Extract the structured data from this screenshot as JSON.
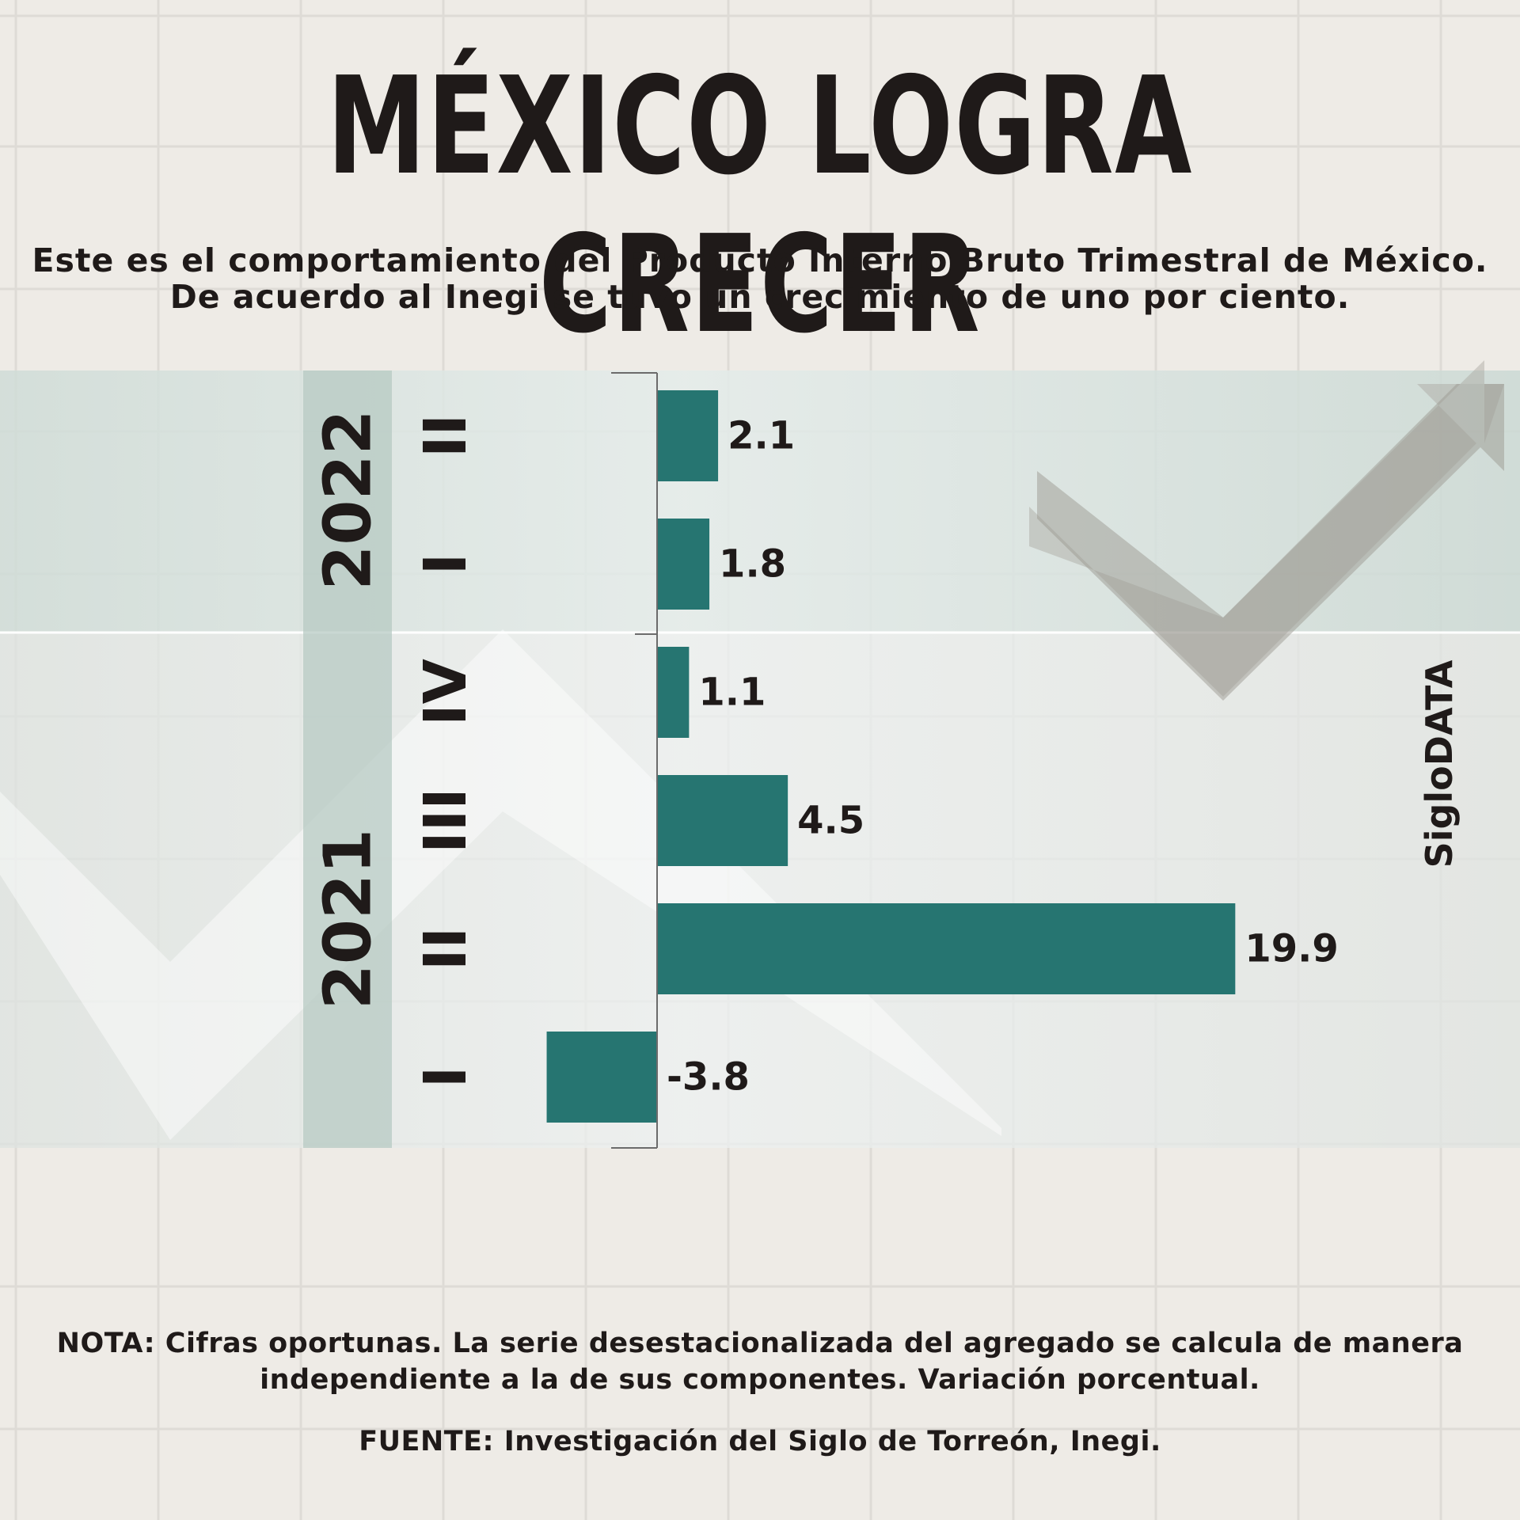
{
  "title": "MÉXICO LOGRA CRECER",
  "subtitle": {
    "line1": "Este es el comportamiento del Producto Interno Bruto Trimestral de México.",
    "line2": "De acuerdo al Inegi se tuvo un crecimiento de uno por ciento."
  },
  "note": {
    "line1": "NOTA: Cifras oportunas. La serie desestacionalizada del agregado se calcula de manera",
    "line2": "independiente a la de sus componentes. Variación porcentual."
  },
  "source": "FUENTE: Investigación del Siglo de Torreón, Inegi.",
  "brand": "SigloDATA",
  "colors": {
    "bar": "#267571",
    "background": "#eeebe6",
    "band": "#c5d6d0",
    "year_band": "#b9cbc5",
    "text": "#1f1a19"
  },
  "chart_data": {
    "type": "bar",
    "orientation": "horizontal",
    "groups": [
      {
        "year": "2022",
        "quarters": [
          {
            "quarter": "II",
            "value": 2.1,
            "label": "2.1"
          },
          {
            "quarter": "I",
            "value": 1.8,
            "label": "1.8"
          }
        ]
      },
      {
        "year": "2021",
        "quarters": [
          {
            "quarter": "IV",
            "value": 1.1,
            "label": "1.1"
          },
          {
            "quarter": "III",
            "value": 4.5,
            "label": "4.5"
          },
          {
            "quarter": "II",
            "value": 19.9,
            "label": "19.9"
          },
          {
            "quarter": "I",
            "value": -3.8,
            "label": "-3.8"
          }
        ]
      }
    ],
    "xlabel": "",
    "ylabel": "",
    "grid": false,
    "legend": "none"
  }
}
